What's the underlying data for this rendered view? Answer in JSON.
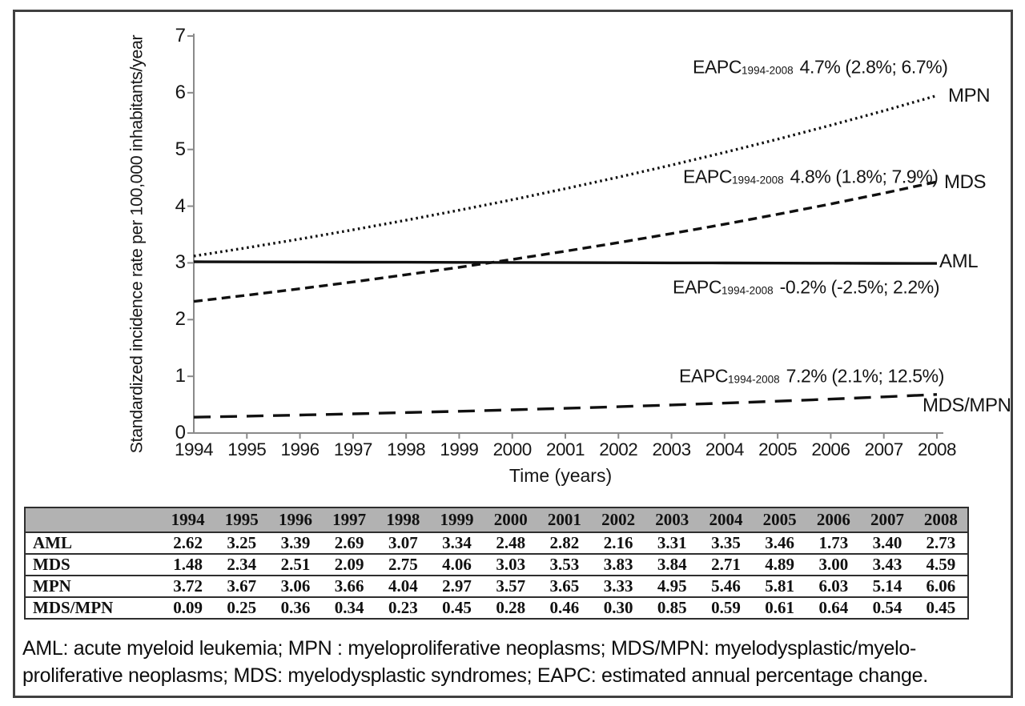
{
  "chart_data": {
    "type": "line",
    "title": "",
    "xlabel": "Time (years)",
    "ylabel": "Standardized incidence rate per 100,000 inhabitants/year",
    "x_years": [
      "1994",
      "1995",
      "1996",
      "1997",
      "1998",
      "1999",
      "2000",
      "2001",
      "2002",
      "2003",
      "2004",
      "2005",
      "2006",
      "2007",
      "2008"
    ],
    "yticks": [
      "0",
      "1",
      "2",
      "3",
      "4",
      "5",
      "6",
      "7"
    ],
    "ylim": [
      0,
      7
    ],
    "grid": "off",
    "legend": "series-name-labels-at-right-line-ends",
    "line_color": "#101010",
    "series": [
      {
        "name": "MPN",
        "line_style": "dotted",
        "trend_start": 3.12,
        "trend_end": 5.95,
        "eapc_prefix": "EAPC",
        "eapc_period": "1994-2008",
        "eapc_value": "4.7% (2.8%; 6.7%)",
        "values": [
          3.72,
          3.67,
          3.06,
          3.66,
          4.04,
          2.97,
          3.57,
          3.65,
          3.33,
          4.95,
          5.46,
          5.81,
          6.03,
          5.14,
          6.06
        ]
      },
      {
        "name": "MDS",
        "line_style": "dashed",
        "trend_start": 2.32,
        "trend_end": 4.43,
        "eapc_prefix": "EAPC",
        "eapc_period": "1994-2008",
        "eapc_value": "4.8% (1.8%; 7.9%)",
        "values": [
          1.48,
          2.34,
          2.51,
          2.09,
          2.75,
          4.06,
          3.03,
          3.53,
          3.83,
          3.84,
          2.71,
          4.89,
          3.0,
          3.43,
          4.59
        ]
      },
      {
        "name": "AML",
        "line_style": "solid",
        "trend_start": 3.02,
        "trend_end": 2.99,
        "eapc_prefix": "EAPC",
        "eapc_period": "1994-2008",
        "eapc_value": "-0.2% (-2.5%; 2.2%)",
        "values": [
          2.62,
          3.25,
          3.39,
          2.69,
          3.07,
          3.34,
          2.48,
          2.82,
          2.16,
          3.31,
          3.35,
          3.46,
          1.73,
          3.4,
          2.73
        ]
      },
      {
        "name": "MDS/MPN",
        "line_style": "long-dash",
        "trend_start": 0.28,
        "trend_end": 0.68,
        "eapc_prefix": "EAPC",
        "eapc_period": "1994-2008",
        "eapc_value": "7.2% (2.1%; 12.5%)",
        "values": [
          0.09,
          0.25,
          0.36,
          0.34,
          0.23,
          0.45,
          0.28,
          0.46,
          0.3,
          0.85,
          0.59,
          0.61,
          0.64,
          0.54,
          0.45
        ]
      }
    ]
  },
  "table": {
    "corner": "",
    "years": [
      "1994",
      "1995",
      "1996",
      "1997",
      "1998",
      "1999",
      "2000",
      "2001",
      "2002",
      "2003",
      "2004",
      "2005",
      "2006",
      "2007",
      "2008"
    ],
    "rows": [
      {
        "label": "AML",
        "values": [
          "2.62",
          "3.25",
          "3.39",
          "2.69",
          "3.07",
          "3.34",
          "2.48",
          "2.82",
          "2.16",
          "3.31",
          "3.35",
          "3.46",
          "1.73",
          "3.40",
          "2.73"
        ]
      },
      {
        "label": "MDS",
        "values": [
          "1.48",
          "2.34",
          "2.51",
          "2.09",
          "2.75",
          "4.06",
          "3.03",
          "3.53",
          "3.83",
          "3.84",
          "2.71",
          "4.89",
          "3.00",
          "3.43",
          "4.59"
        ]
      },
      {
        "label": "MPN",
        "values": [
          "3.72",
          "3.67",
          "3.06",
          "3.66",
          "4.04",
          "2.97",
          "3.57",
          "3.65",
          "3.33",
          "4.95",
          "5.46",
          "5.81",
          "6.03",
          "5.14",
          "6.06"
        ]
      },
      {
        "label": "MDS/MPN",
        "values": [
          "0.09",
          "0.25",
          "0.36",
          "0.34",
          "0.23",
          "0.45",
          "0.28",
          "0.46",
          "0.30",
          "0.85",
          "0.59",
          "0.61",
          "0.64",
          "0.54",
          "0.45"
        ]
      }
    ]
  },
  "figure": {
    "footnote_line1": "AML: acute myeloid leukemia; MPN : myeloproliferative neoplasms; MDS/MPN: myelodysplastic/myelo-",
    "footnote_line2": "proliferative neoplasms; MDS: myelodysplastic syndromes; EAPC: estimated annual percentage change.",
    "header_bg": "#b2b2b2",
    "line_color": "#101010",
    "axis_color": "#8a8a8a"
  }
}
